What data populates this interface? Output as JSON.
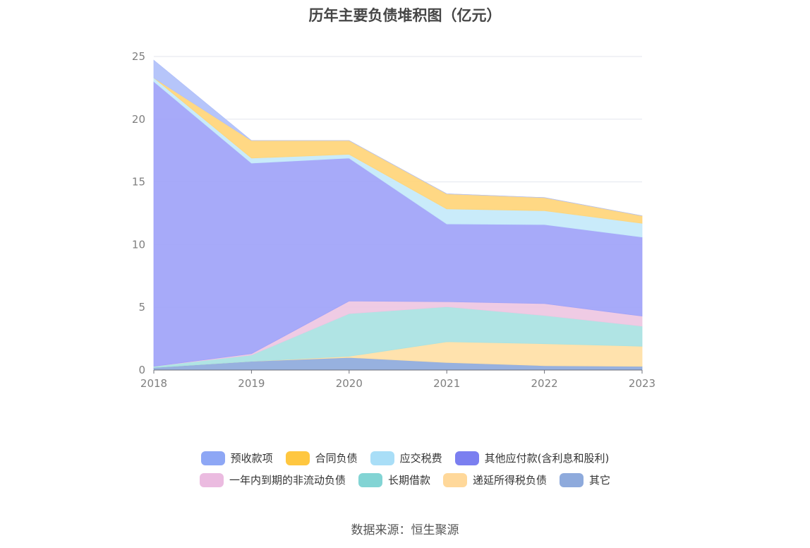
{
  "chart_data": {
    "type": "area",
    "stacked": true,
    "title": "历年主要负债堆积图（亿元）",
    "x": [
      "2018",
      "2019",
      "2020",
      "2021",
      "2022",
      "2023"
    ],
    "ylim": [
      0,
      25
    ],
    "yticks": [
      "0",
      "5",
      "10",
      "15",
      "20",
      "25"
    ],
    "grid": true,
    "legend_position": "bottom",
    "series": [
      {
        "name": "其它",
        "color": "#8eaadc",
        "values": [
          0.2,
          0.7,
          1.0,
          0.6,
          0.35,
          0.3
        ]
      },
      {
        "name": "递延所得税负债",
        "color": "#ffe0a6",
        "values": [
          0.0,
          0.0,
          0.1,
          1.65,
          1.75,
          1.6
        ]
      },
      {
        "name": "长期借款",
        "color": "#a9e2e2",
        "values": [
          0.1,
          0.5,
          3.4,
          2.8,
          2.25,
          1.6
        ]
      },
      {
        "name": "一年内到期的非流动负债",
        "color": "#eec7e2",
        "values": [
          0.0,
          0.1,
          1.0,
          0.4,
          0.95,
          0.8
        ]
      },
      {
        "name": "其他应付款(含利息和股利)",
        "color": "#a0a3f9",
        "values": [
          22.7,
          15.2,
          11.4,
          6.2,
          6.3,
          6.3
        ]
      },
      {
        "name": "应交税费",
        "color": "#c4e9fa",
        "values": [
          0.3,
          0.4,
          0.3,
          1.2,
          1.1,
          1.1
        ]
      },
      {
        "name": "合同负债",
        "color": "#ffd57a",
        "values": [
          0.0,
          1.4,
          1.1,
          1.2,
          1.05,
          0.6
        ]
      },
      {
        "name": "预收款项",
        "color": "#b0c0fa",
        "values": [
          1.4,
          0.0,
          0.0,
          0.0,
          0.0,
          0.0
        ]
      }
    ]
  },
  "legend": {
    "row1": [
      {
        "label": "预收款项",
        "color": "#8ea7f5"
      },
      {
        "label": "合同负债",
        "color": "#ffc740"
      },
      {
        "label": "应交税费",
        "color": "#a9def7"
      },
      {
        "label": "其他应付款(含利息和股利)",
        "color": "#7b7ff0"
      }
    ],
    "row2": [
      {
        "label": "一年内到期的非流动负债",
        "color": "#ebbbe0"
      },
      {
        "label": "长期借款",
        "color": "#82d4d4"
      },
      {
        "label": "递延所得税负债",
        "color": "#ffd89a"
      },
      {
        "label": "其它",
        "color": "#8eaadc"
      }
    ]
  },
  "source": "数据来源：恒生聚源"
}
